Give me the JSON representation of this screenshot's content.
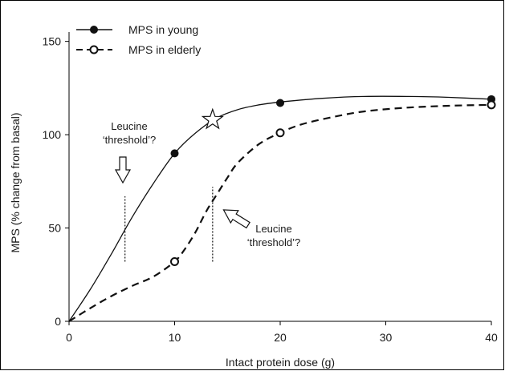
{
  "chart_data": {
    "type": "line",
    "xlabel": "Intact protein dose (g)",
    "ylabel": "MPS (% change from basal)",
    "xlim": [
      0,
      40
    ],
    "ylim": [
      0,
      155
    ],
    "x_ticks": [
      {
        "value": 0,
        "label": "0"
      },
      {
        "value": 10,
        "label": "10"
      },
      {
        "value": 20,
        "label": "20"
      },
      {
        "value": 30,
        "label": "30"
      },
      {
        "value": 40,
        "label": "40"
      }
    ],
    "y_ticks": [
      {
        "value": 0,
        "label": "0"
      },
      {
        "value": 50,
        "label": "50"
      },
      {
        "value": 100,
        "label": "100"
      },
      {
        "value": 150,
        "label": "150"
      }
    ],
    "grid": false,
    "legend_position": "top-left",
    "series": [
      {
        "name": "MPS in young",
        "line_style": "solid",
        "marker": "filled-circle",
        "color": "#111111",
        "points": [
          {
            "x": 0,
            "y": 0
          },
          {
            "x": 10,
            "y": 90
          },
          {
            "x": 20,
            "y": 117
          },
          {
            "x": 40,
            "y": 119
          }
        ],
        "curve": [
          [
            0,
            0
          ],
          [
            2,
            17
          ],
          [
            4,
            36
          ],
          [
            6,
            56
          ],
          [
            8,
            74
          ],
          [
            10,
            90
          ],
          [
            12,
            101
          ],
          [
            14,
            109
          ],
          [
            16,
            113.5
          ],
          [
            18,
            116
          ],
          [
            20,
            117.5
          ],
          [
            24,
            119.5
          ],
          [
            28,
            120.5
          ],
          [
            32,
            120.5
          ],
          [
            36,
            120
          ],
          [
            40,
            119
          ]
        ]
      },
      {
        "name": "MPS in elderly",
        "line_style": "dashed",
        "marker": "open-circle",
        "color": "#111111",
        "points": [
          {
            "x": 0,
            "y": 0
          },
          {
            "x": 10,
            "y": 32
          },
          {
            "x": 20,
            "y": 101
          },
          {
            "x": 40,
            "y": 116
          }
        ],
        "curve": [
          [
            0,
            0
          ],
          [
            2,
            7
          ],
          [
            4,
            13.5
          ],
          [
            6,
            19
          ],
          [
            8,
            24
          ],
          [
            10,
            32
          ],
          [
            11,
            39
          ],
          [
            12,
            48
          ],
          [
            13,
            59
          ],
          [
            14,
            68
          ],
          [
            15,
            77
          ],
          [
            16,
            85
          ],
          [
            18,
            95
          ],
          [
            20,
            101
          ],
          [
            22,
            105.5
          ],
          [
            25,
            109.5
          ],
          [
            28,
            112.5
          ],
          [
            32,
            114.5
          ],
          [
            36,
            115.5
          ],
          [
            40,
            116
          ]
        ]
      }
    ],
    "annotations": [
      {
        "kind": "label",
        "lines": [
          "Leucine",
          "‘threshold’?"
        ],
        "near_x": 5.5,
        "near_y": 52
      },
      {
        "kind": "label",
        "lines": [
          "Leucine",
          "‘threshold’?"
        ],
        "near_x": 13.6,
        "near_y": 58
      },
      {
        "kind": "marker",
        "shape": "star",
        "x": 13.6,
        "y": 108
      },
      {
        "kind": "threshold-line",
        "x": 5.3,
        "y_from": 32,
        "y_to": 67
      },
      {
        "kind": "threshold-line",
        "x": 13.6,
        "y_from": 32,
        "y_to": 72
      }
    ]
  }
}
